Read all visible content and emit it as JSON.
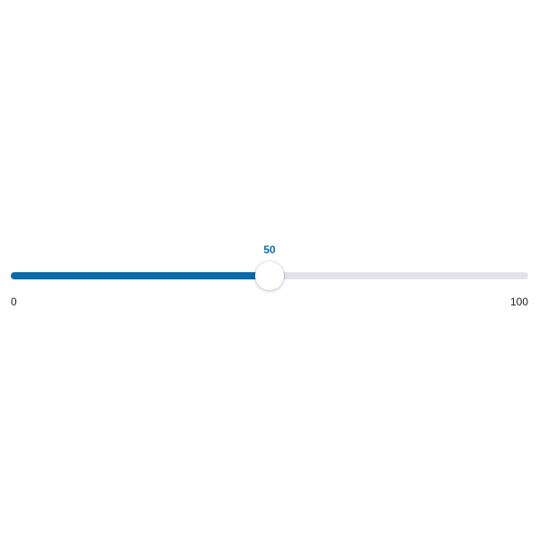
{
  "slider": {
    "min": 0,
    "max": 100,
    "value": 50,
    "min_label": "0",
    "max_label": "100",
    "value_label": "50",
    "colors": {
      "accent": "#0b6aa8",
      "track": "#e3e2ea",
      "thumb": "#ffffff"
    }
  }
}
